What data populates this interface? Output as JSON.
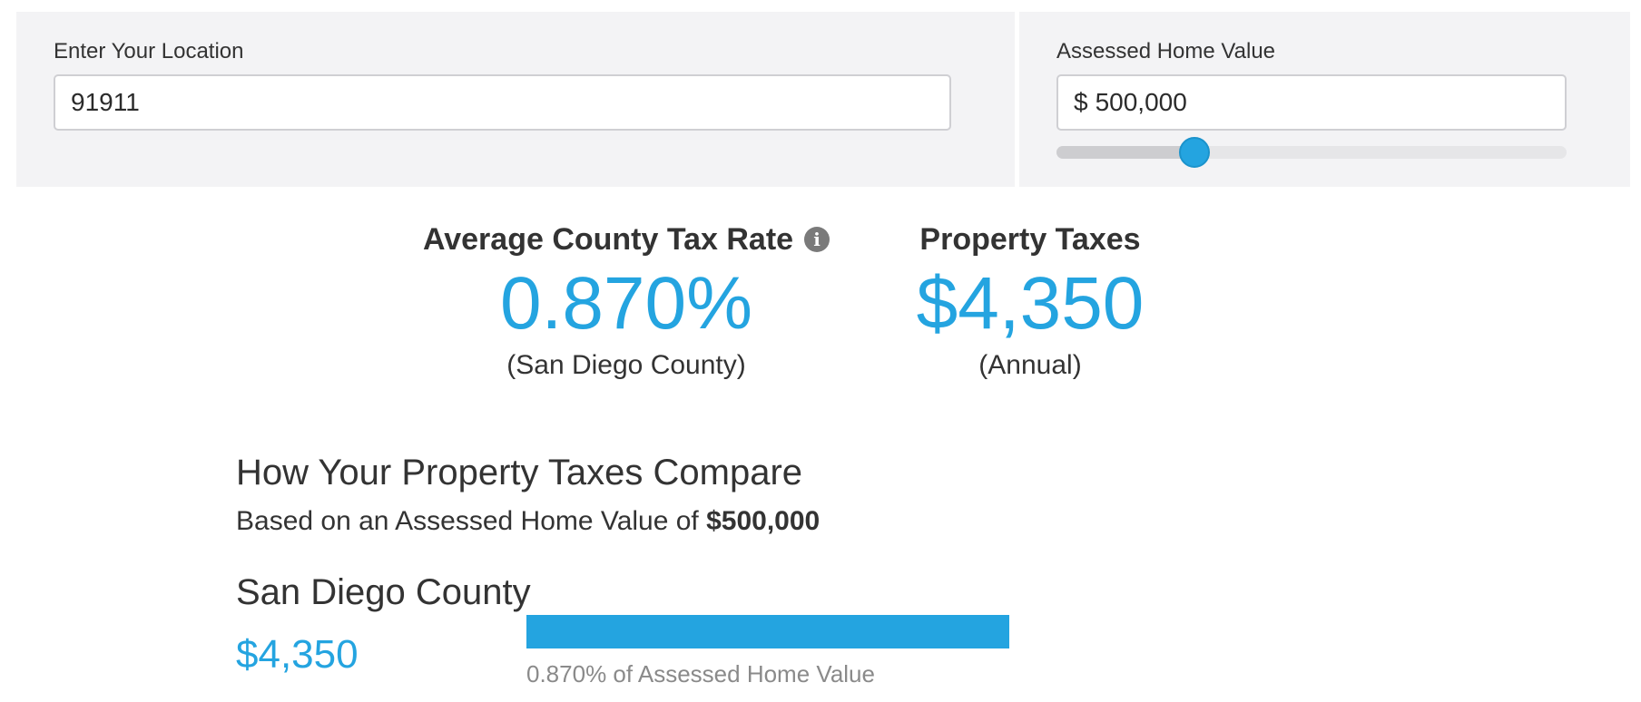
{
  "location": {
    "label": "Enter Your Location",
    "value": "91911"
  },
  "home_value": {
    "label": "Assessed Home Value",
    "currency": "$",
    "value": "500,000",
    "slider_fraction": 0.27
  },
  "summary": {
    "rate_heading": "Average County Tax Rate",
    "rate_value": "0.870%",
    "rate_sub": "(San Diego County)",
    "taxes_heading": "Property Taxes",
    "taxes_value": "$4,350",
    "taxes_sub": "(Annual)"
  },
  "compare": {
    "title": "How Your Property Taxes Compare",
    "basis_prefix": "Based on an Assessed Home Value of",
    "basis_value": "$500,000",
    "rows": [
      {
        "name": "San Diego County",
        "amount": "$4,350",
        "caption": "0.870% of Assessed Home Value",
        "bar_fraction": 1.0
      }
    ]
  },
  "colors": {
    "accent": "#24a4e0",
    "panel_bg": "#f3f3f5",
    "text": "#333333",
    "muted": "#8a8a8a"
  },
  "icons": {
    "info": "info-icon"
  }
}
